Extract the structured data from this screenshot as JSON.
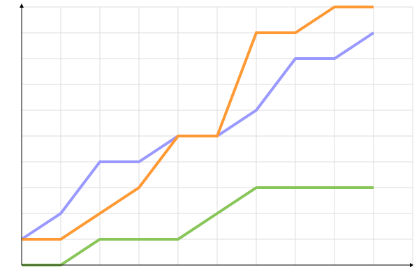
{
  "chart_data": {
    "type": "line",
    "title": "",
    "xlabel": "",
    "ylabel": "",
    "x": [
      0,
      1,
      2,
      3,
      4,
      5,
      6,
      7,
      8,
      9
    ],
    "xlim": [
      0,
      10
    ],
    "ylim": [
      0,
      10
    ],
    "grid": true,
    "legend": "none",
    "series": [
      {
        "color": "#9999ff",
        "values": [
          1,
          2,
          4,
          4,
          5,
          5,
          6,
          8,
          8,
          9
        ]
      },
      {
        "color": "#ff9933",
        "values": [
          1,
          1,
          2,
          3,
          5,
          5,
          9,
          9,
          10,
          10
        ]
      },
      {
        "color": "#88c65a",
        "values": [
          0,
          0,
          1,
          1,
          1,
          2,
          3,
          3,
          3,
          3
        ]
      }
    ]
  }
}
